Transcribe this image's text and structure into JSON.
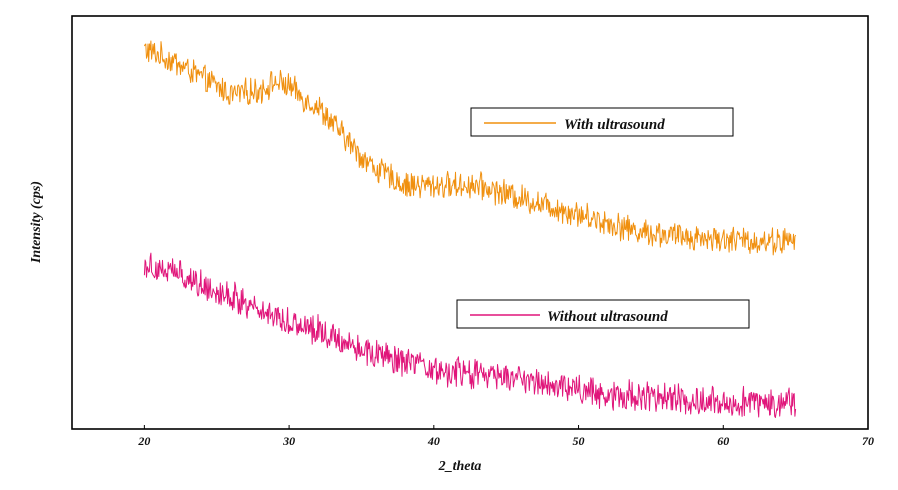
{
  "chart_data": {
    "type": "line",
    "xlabel": "2_theta",
    "ylabel": "Intensity (cps)",
    "xlim": [
      15,
      70
    ],
    "xticks": [
      20,
      30,
      40,
      50,
      60,
      70
    ],
    "yticks_shown": false,
    "grid": false,
    "series": [
      {
        "name": "With ultrasound",
        "color": "#f0900f",
        "x": [
          20,
          22,
          24,
          26,
          28,
          29,
          30,
          31,
          32,
          33,
          34,
          35,
          36,
          37,
          38,
          39,
          40,
          41,
          42,
          43,
          44,
          45,
          46,
          48,
          50,
          52,
          54,
          56,
          58,
          60,
          62,
          64,
          65
        ],
        "y_level": [
          0.92,
          0.89,
          0.85,
          0.81,
          0.82,
          0.84,
          0.83,
          0.8,
          0.78,
          0.74,
          0.7,
          0.66,
          0.63,
          0.61,
          0.59,
          0.59,
          0.59,
          0.59,
          0.59,
          0.59,
          0.58,
          0.57,
          0.56,
          0.54,
          0.52,
          0.5,
          0.48,
          0.47,
          0.465,
          0.46,
          0.455,
          0.455,
          0.455
        ]
      },
      {
        "name": "Without ultrasound",
        "color": "#e0157a",
        "x": [
          20,
          22,
          24,
          26,
          28,
          30,
          32,
          34,
          36,
          38,
          40,
          42,
          44,
          46,
          48,
          50,
          52,
          54,
          56,
          58,
          60,
          62,
          64,
          65
        ],
        "y_level": [
          0.4,
          0.38,
          0.35,
          0.32,
          0.29,
          0.26,
          0.24,
          0.21,
          0.18,
          0.16,
          0.14,
          0.135,
          0.13,
          0.12,
          0.11,
          0.095,
          0.085,
          0.08,
          0.075,
          0.07,
          0.065,
          0.065,
          0.065,
          0.065
        ]
      }
    ],
    "legend": [
      {
        "label": "With ultrasound",
        "position": "upper-right of top trace"
      },
      {
        "label": "Without ultrasound",
        "position": "upper-right of bottom trace"
      }
    ]
  }
}
